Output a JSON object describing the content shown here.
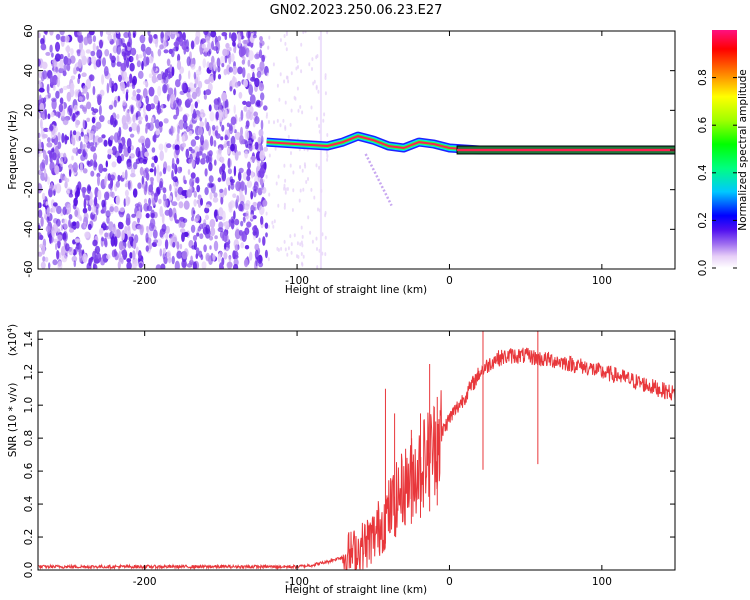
{
  "title": "GN02.2023.250.06.23.E27",
  "chart_data": [
    {
      "type": "heatmap",
      "xlabel": "Height of straight line (km)",
      "ylabel": "Frequency (Hz)",
      "xlim": [
        -270,
        148
      ],
      "ylim": [
        -60,
        60
      ],
      "x_ticks": [
        -200,
        -100,
        0,
        100
      ],
      "y_ticks": [
        -60,
        -40,
        -20,
        0,
        20,
        40,
        60
      ],
      "colorbar": {
        "label": "Normalized spectral amplitude",
        "range": [
          0,
          1
        ],
        "ticks": [
          0.0,
          0.2,
          0.4,
          0.6,
          0.8
        ]
      },
      "signal_track": [
        {
          "x": -120,
          "y": 4
        },
        {
          "x": -100,
          "y": 3
        },
        {
          "x": -80,
          "y": 2
        },
        {
          "x": -70,
          "y": 4
        },
        {
          "x": -60,
          "y": 7
        },
        {
          "x": -50,
          "y": 5
        },
        {
          "x": -40,
          "y": 2
        },
        {
          "x": -30,
          "y": 1
        },
        {
          "x": -20,
          "y": 4
        },
        {
          "x": -10,
          "y": 3
        },
        {
          "x": 0,
          "y": 1
        },
        {
          "x": 20,
          "y": 0
        },
        {
          "x": 148,
          "y": 0
        }
      ],
      "noise_region": {
        "x_from": -270,
        "x_to": -120
      }
    },
    {
      "type": "line",
      "xlabel": "Height of straight line (km)",
      "ylabel": "SNR (10 * v/v)",
      "y_multiplier": "(x10",
      "y_multiplier_exp": "4",
      "xlim": [
        -270,
        148
      ],
      "ylim": [
        0,
        1.45
      ],
      "x_ticks": [
        -200,
        -100,
        0,
        100
      ],
      "y_ticks": [
        0.0,
        0.2,
        0.4,
        0.6,
        0.8,
        1.0,
        1.2,
        1.4
      ],
      "color": "#e8373b",
      "series": [
        {
          "x": [
            -270,
            -250,
            -200,
            -150,
            -100,
            -90,
            -80,
            -70,
            -60,
            -50,
            -40,
            -30,
            -20,
            -10,
            0,
            10,
            20,
            30,
            40,
            50,
            60,
            70,
            80,
            90,
            100,
            110,
            120,
            130,
            140,
            148
          ],
          "values": [
            0.02,
            0.02,
            0.02,
            0.02,
            0.02,
            0.03,
            0.05,
            0.08,
            0.12,
            0.2,
            0.35,
            0.5,
            0.62,
            0.75,
            0.92,
            1.05,
            1.2,
            1.28,
            1.3,
            1.3,
            1.28,
            1.27,
            1.25,
            1.23,
            1.2,
            1.18,
            1.15,
            1.12,
            1.09,
            1.07
          ]
        }
      ],
      "spikes": [
        {
          "x": -55,
          "value": 0.18
        },
        {
          "x": -42,
          "value": 1.1
        },
        {
          "x": -36,
          "value": 0.95
        },
        {
          "x": -25,
          "value": 0.85
        },
        {
          "x": -19,
          "value": 0.95
        },
        {
          "x": -13,
          "value": 1.25
        },
        {
          "x": -8,
          "value": 1.05
        },
        {
          "x": 22,
          "value": 1.45
        },
        {
          "x": 58,
          "value": 1.45
        }
      ]
    }
  ]
}
